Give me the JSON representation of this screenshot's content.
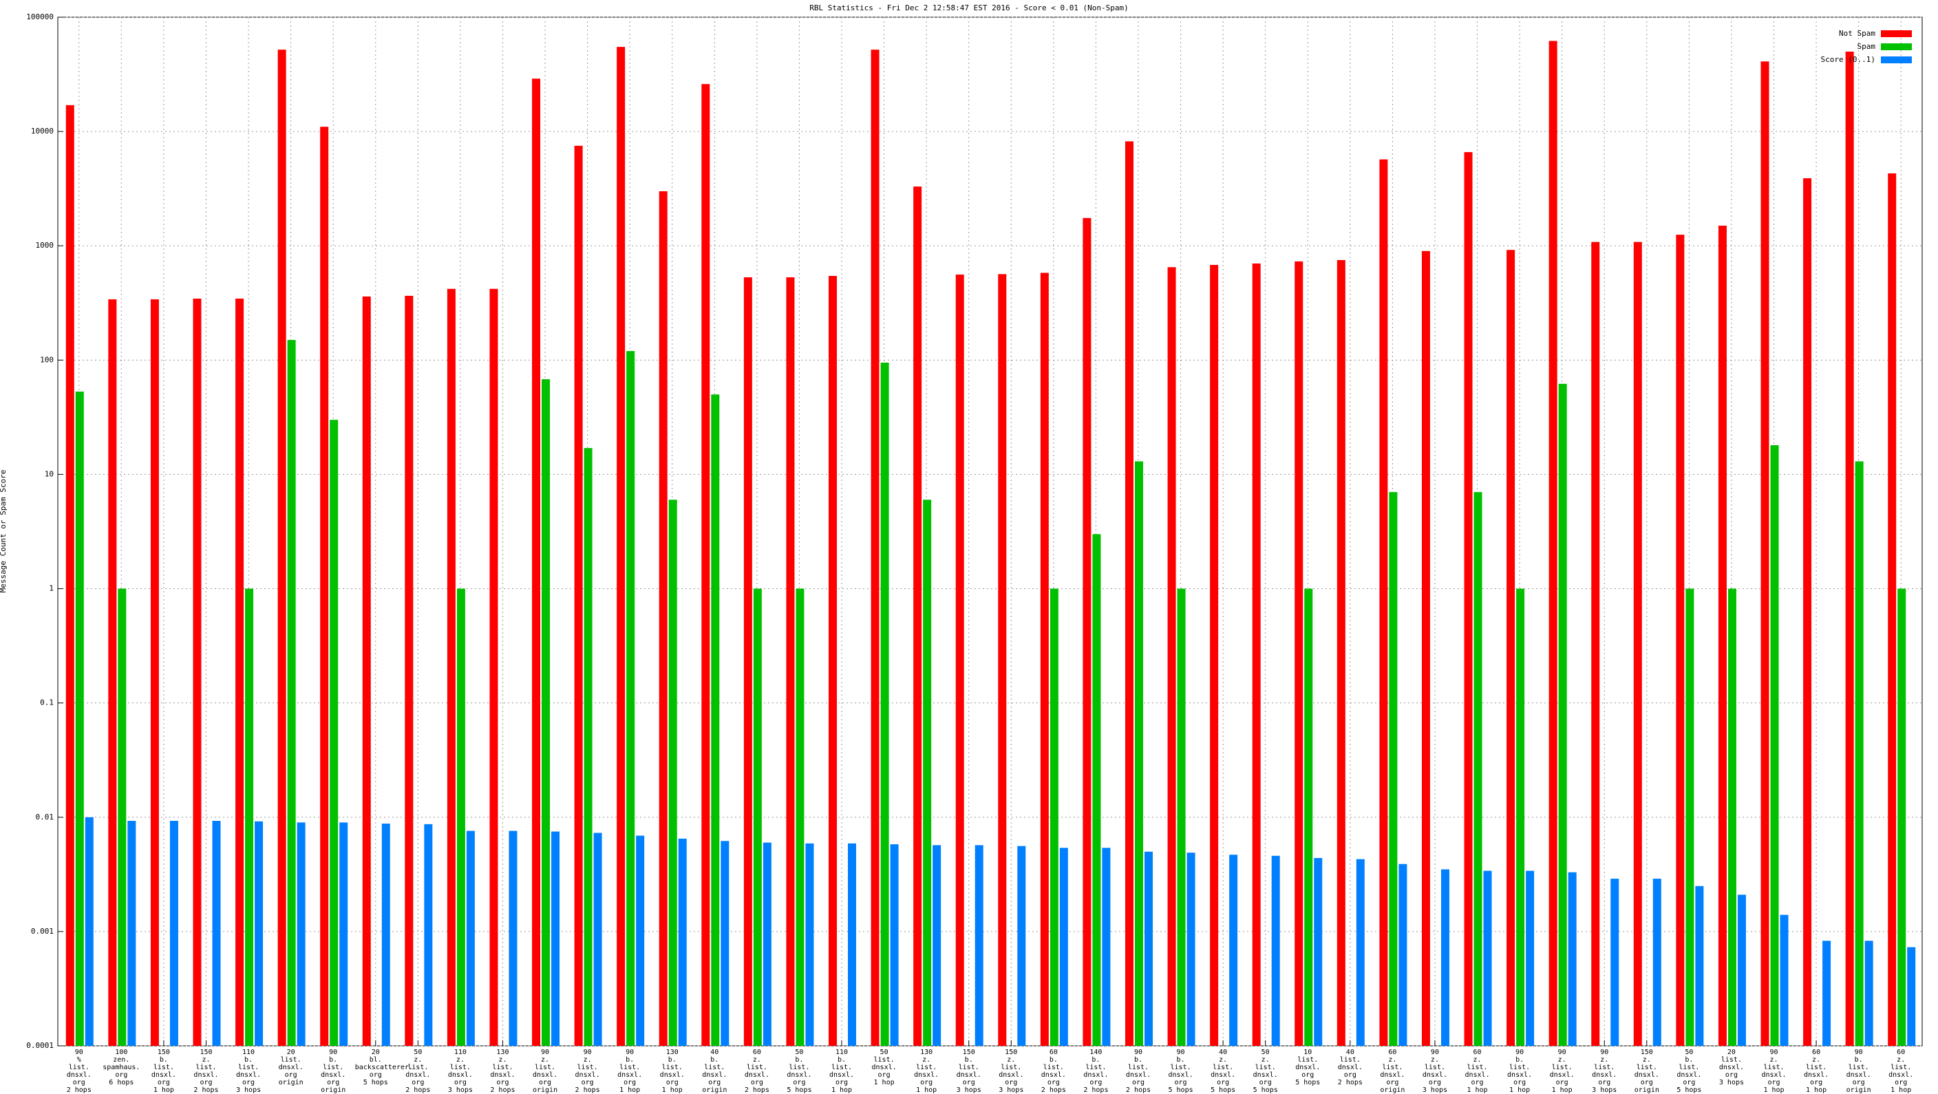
{
  "chart_data": {
    "type": "bar",
    "title": "RBL Statistics - Fri Dec  2 12:58:47 EST 2016 - Score < 0.01 (Non-Spam)",
    "ylabel": "Message Count or Spam Score",
    "log_scale": true,
    "grid": true,
    "legend": "top-right",
    "ylim": [
      0.0001,
      100000
    ],
    "yticks": [
      0.0001,
      0.001,
      0.01,
      0.1,
      1,
      10,
      100,
      1000,
      10000,
      100000
    ],
    "categories": [
      "90\n%\nlist.\ndnsxl.\norg\n2 hops",
      "100\nzen.\nspamhaus.\norg\n6 hops",
      "150\nb.\nlist.\ndnsxl.\norg\n1 hop",
      "150\nz.\nlist.\ndnsxl.\norg\n2 hops",
      "110\nb.\nlist.\ndnsxl.\norg\n3 hops",
      "20\nlist.\ndnsxl.\norg\norigin",
      "90\nb.\nlist.\ndnsxl.\norg\norigin",
      "20\nbl.\nbackscatterer.\norg\n5 hops",
      "50\nz.\nlist.\ndnsxl.\norg\n2 hops",
      "110\nz.\nlist.\ndnsxl.\norg\n3 hops",
      "130\nz.\nlist.\ndnsxl.\norg\n2 hops",
      "90\nz.\nlist.\ndnsxl.\norg\norigin",
      "90\nz.\nlist.\ndnsxl.\norg\n2 hops",
      "90\nb.\nlist.\ndnsxl.\norg\n1 hop",
      "130\nb.\nlist.\ndnsxl.\norg\n1 hop",
      "40\nb.\nlist.\ndnsxl.\norg\norigin",
      "60\nz.\nlist.\ndnsxl.\norg\n2 hops",
      "50\nb.\nlist.\ndnsxl.\norg\n5 hops",
      "110\nb.\nlist.\ndnsxl.\norg\n1 hop",
      "50\nlist.\ndnsxl.\norg\n1 hop",
      "130\nz.\nlist.\ndnsxl.\norg\n1 hop",
      "150\nb.\nlist.\ndnsxl.\norg\n3 hops",
      "150\nz.\nlist.\ndnsxl.\norg\n3 hops",
      "60\nb.\nlist.\ndnsxl.\norg\n2 hops",
      "140\nb.\nlist.\ndnsxl.\norg\n2 hops",
      "90\nb.\nlist.\ndnsxl.\norg\n2 hops",
      "90\nb.\nlist.\ndnsxl.\norg\n5 hops",
      "40\nz.\nlist.\ndnsxl.\norg\n5 hops",
      "50\nz.\nlist.\ndnsxl.\norg\n5 hops",
      "10\nlist.\ndnsxl.\norg\n5 hops",
      "40\nlist.\ndnsxl.\norg\n2 hops",
      "60\nz.\nlist.\ndnsxl.\norg\norigin",
      "90\nz.\nlist.\ndnsxl.\norg\n3 hops",
      "60\nz.\nlist.\ndnsxl.\norg\n1 hop",
      "90\nb.\nlist.\ndnsxl.\norg\n1 hop",
      "90\nz.\nlist.\ndnsxl.\norg\n1 hop",
      "90\nz.\nlist.\ndnsxl.\norg\n3 hops",
      "150\nz.\nlist.\ndnsxl.\norg\norigin",
      "50\nb.\nlist.\ndnsxl.\norg\n5 hops",
      "20\nlist.\ndnsxl.\norg\n3 hops",
      "90\nz.\nlist.\ndnsxl.\norg\n1 hop",
      "60\nz.\nlist.\ndnsxl.\norg\n1 hop",
      "90\nb.\nlist.\ndnsxl.\norg\norigin",
      "60\nz.\nlist.\ndnsxl.\norg\n1 hop"
    ],
    "series": [
      {
        "name": "Not Spam",
        "color": "#ff0000",
        "values": [
          17000,
          340,
          340,
          345,
          345,
          52000,
          11000,
          360,
          365,
          420,
          420,
          29000,
          7500,
          55000,
          3000,
          26000,
          530,
          530,
          545,
          52000,
          3300,
          560,
          565,
          580,
          1750,
          8200,
          650,
          680,
          700,
          730,
          750,
          5700,
          900,
          6600,
          920,
          62000,
          1080,
          1080,
          1250,
          1500,
          41000,
          3900,
          50000,
          4300
        ]
      },
      {
        "name": "Spam",
        "color": "#00c000",
        "values": [
          53,
          1,
          null,
          null,
          1,
          150,
          30,
          null,
          null,
          1,
          null,
          68,
          17,
          120,
          6,
          50,
          1,
          1,
          null,
          95,
          6,
          null,
          null,
          1,
          3,
          13,
          1,
          null,
          null,
          1,
          null,
          7,
          null,
          7,
          1,
          62,
          null,
          null,
          1,
          1,
          18,
          null,
          13,
          1
        ]
      },
      {
        "name": "Score (0..1)",
        "color": "#0080ff",
        "values": [
          0.01,
          0.0093,
          0.0093,
          0.0093,
          0.0092,
          0.009,
          0.009,
          0.0088,
          0.0087,
          0.0076,
          0.0076,
          0.0075,
          0.0073,
          0.0069,
          0.0065,
          0.0062,
          0.006,
          0.0059,
          0.0059,
          0.0058,
          0.0057,
          0.0057,
          0.0056,
          0.0054,
          0.0054,
          0.005,
          0.0049,
          0.0047,
          0.0046,
          0.0044,
          0.0043,
          0.0039,
          0.0035,
          0.0034,
          0.0034,
          0.0033,
          0.0029,
          0.0029,
          0.0025,
          0.0021,
          0.0014,
          0.00083,
          0.00083,
          0.00073
        ]
      }
    ]
  }
}
